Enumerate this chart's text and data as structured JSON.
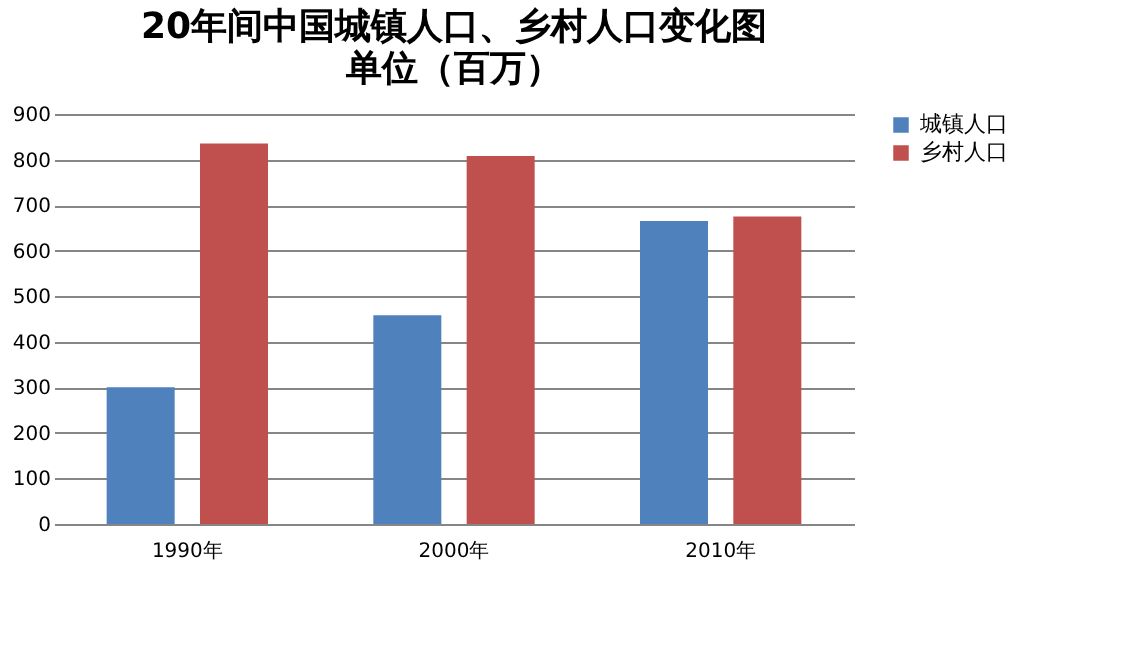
{
  "chart_data": {
    "type": "bar",
    "title": "20年间中国城镇人口、乡村人口变化图",
    "subtitle": "单位（百万）",
    "categories": [
      "1990年",
      "2000年",
      "2010年"
    ],
    "series": [
      {
        "name": "城镇人口",
        "color": "#4f81bd",
        "values": [
          300,
          458,
          665
        ]
      },
      {
        "name": "乡村人口",
        "color": "#c0504d",
        "values": [
          835,
          808,
          675
        ]
      }
    ],
    "ylim": [
      0,
      900
    ],
    "yticks": [
      0,
      100,
      200,
      300,
      400,
      500,
      600,
      700,
      800,
      900
    ],
    "grid": "y",
    "legend": "right"
  }
}
